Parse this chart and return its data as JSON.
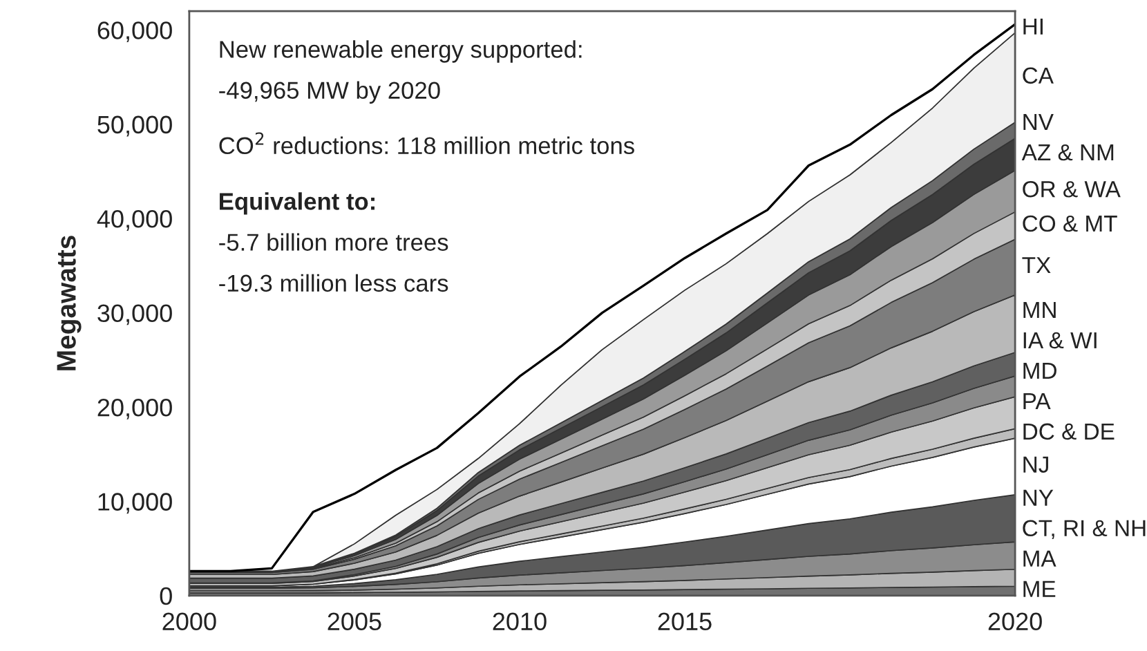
{
  "chart_data": {
    "type": "area",
    "stacked": true,
    "ylabel": "Megawatts",
    "categories": [
      "2000",
      null,
      null,
      null,
      "2005",
      null,
      null,
      null,
      "2010",
      null,
      null,
      null,
      "2015",
      null,
      null,
      null,
      null,
      null,
      null,
      null,
      "2020"
    ],
    "ylim": [
      0,
      62000
    ],
    "yticks": [
      0,
      {
        "value": 10000,
        "label": "10,000"
      },
      {
        "value": 20000,
        "label": "20,000"
      },
      {
        "value": 30000,
        "label": "30,000"
      },
      {
        "value": 40000,
        "label": "40,000"
      },
      {
        "value": 50000,
        "label": "50,000"
      },
      {
        "value": 60000,
        "label": "60,000"
      }
    ],
    "legend": false,
    "grid": false,
    "annotations": [
      "New renewable energy supported:",
      "-49,965 MW by 2020",
      "CO$^{2}$ reductions: 118 million metric tons",
      "Equivalent to:",
      "-5.7 billion more trees",
      "-19.3 million less cars"
    ],
    "series": [
      {
        "name": "ME",
        "color": "#707070",
        "values": [
          300,
          300,
          300,
          300,
          330,
          360,
          400,
          450,
          500,
          530,
          570,
          600,
          640,
          690,
          730,
          780,
          820,
          870,
          910,
          960,
          1000
        ]
      },
      {
        "name": "MA",
        "color": "#b4b4b4",
        "values": [
          200,
          200,
          200,
          220,
          260,
          330,
          420,
          550,
          650,
          730,
          810,
          890,
          980,
          1080,
          1190,
          1300,
          1380,
          1500,
          1590,
          1700,
          1800
        ]
      },
      {
        "name": "CT, RI & NH",
        "color": "#8c8c8c",
        "values": [
          300,
          300,
          300,
          330,
          400,
          510,
          660,
          870,
          1030,
          1160,
          1290,
          1420,
          1570,
          1730,
          1910,
          2090,
          2220,
          2410,
          2560,
          2740,
          2900
        ]
      },
      {
        "name": "NY",
        "color": "#5a5a5a",
        "values": [
          100,
          100,
          100,
          150,
          300,
          490,
          790,
          1180,
          1470,
          1720,
          1960,
          2210,
          2500,
          2800,
          3140,
          3480,
          3730,
          4070,
          4360,
          4710,
          5000
        ]
      },
      {
        "name": "NJ",
        "color": "#ffffff",
        "values": [
          150,
          150,
          150,
          210,
          380,
          620,
          970,
          1440,
          1790,
          2080,
          2370,
          2670,
          3020,
          3370,
          3780,
          4190,
          4480,
          4890,
          5240,
          5650,
          6000
        ]
      },
      {
        "name": "DC & DE",
        "color": "#bdbdbd",
        "values": [
          0,
          0,
          0,
          10,
          40,
          80,
          140,
          220,
          280,
          330,
          380,
          430,
          490,
          550,
          620,
          690,
          740,
          810,
          870,
          940,
          1000
        ]
      },
      {
        "name": "PA",
        "color": "#c8c8c8",
        "values": [
          250,
          250,
          250,
          280,
          380,
          500,
          690,
          940,
          1130,
          1290,
          1450,
          1600,
          1790,
          1980,
          2200,
          2420,
          2580,
          2800,
          2990,
          3210,
          3400
        ]
      },
      {
        "name": "MD",
        "color": "#8a8a8a",
        "values": [
          50,
          50,
          50,
          70,
          140,
          220,
          350,
          520,
          650,
          760,
          870,
          980,
          1100,
          1230,
          1380,
          1530,
          1640,
          1790,
          1920,
          2070,
          2200
        ]
      },
      {
        "name": "IA & WI",
        "color": "#606060",
        "values": [
          500,
          500,
          500,
          520,
          580,
          660,
          780,
          940,
          1060,
          1160,
          1260,
          1360,
          1480,
          1600,
          1740,
          1880,
          1980,
          2120,
          2240,
          2380,
          2500
        ]
      },
      {
        "name": "MN",
        "color": "#b9b9b9",
        "values": [
          400,
          400,
          400,
          460,
          630,
          860,
          1200,
          1650,
          2000,
          2280,
          2570,
          2850,
          3190,
          3540,
          3930,
          4330,
          4620,
          5020,
          5360,
          5760,
          6100
        ]
      },
      {
        "name": "TX",
        "color": "#7d7d7d",
        "values": [
          200,
          200,
          200,
          260,
          430,
          660,
          1000,
          1450,
          1800,
          2080,
          2370,
          2650,
          2990,
          3340,
          3730,
          4130,
          4420,
          4820,
          5160,
          5560,
          5900
        ]
      },
      {
        "name": "CO & MT",
        "color": "#c4c4c4",
        "values": [
          50,
          50,
          50,
          80,
          160,
          280,
          450,
          680,
          850,
          990,
          1130,
          1280,
          1450,
          1620,
          1820,
          2020,
          2160,
          2360,
          2530,
          2730,
          2900
        ]
      },
      {
        "name": "OR & WA",
        "color": "#9a9a9a",
        "values": [
          50,
          50,
          50,
          90,
          220,
          400,
          660,
          1010,
          1270,
          1490,
          1700,
          1920,
          2180,
          2440,
          2750,
          3050,
          3270,
          3570,
          3840,
          4140,
          4400
        ]
      },
      {
        "name": "AZ & NM",
        "color": "#3c3c3c",
        "values": [
          50,
          50,
          50,
          80,
          180,
          320,
          520,
          790,
          990,
          1160,
          1320,
          1490,
          1690,
          1890,
          2130,
          2360,
          2530,
          2760,
          2970,
          3200,
          3400
        ]
      },
      {
        "name": "NV",
        "color": "#6a6a6a",
        "values": [
          0,
          0,
          0,
          20,
          70,
          140,
          240,
          370,
          480,
          560,
          650,
          730,
          830,
          940,
          1050,
          1170,
          1260,
          1380,
          1480,
          1600,
          1700
        ]
      },
      {
        "name": "CA",
        "color": "#f0f0f0",
        "values": [
          0,
          0,
          0,
          0,
          1000,
          2100,
          2000,
          1500,
          2300,
          4000,
          5400,
          6200,
          6500,
          6400,
          6300,
          6400,
          6800,
          6900,
          7700,
          8600,
          9500
        ]
      },
      {
        "name": "HI",
        "color": "#ffffff",
        "values": [
          0,
          0,
          300,
          5800,
          5300,
          4800,
          4400,
          4800,
          5000,
          4100,
          3900,
          3600,
          3400,
          3200,
          2500,
          3800,
          3200,
          2900,
          2000,
          1400,
          900
        ]
      }
    ]
  }
}
